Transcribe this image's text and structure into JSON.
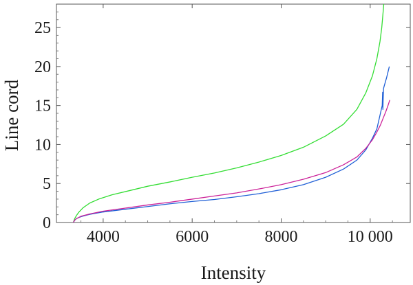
{
  "chart_data": {
    "type": "line",
    "title": "",
    "xlabel": "Intensity",
    "ylabel": "Line cord",
    "xlim": [
      2950,
      10900
    ],
    "ylim": [
      0,
      28
    ],
    "x_ticks": [
      4000,
      6000,
      8000,
      10000
    ],
    "x_tick_labels": [
      "4000",
      "6000",
      "8000",
      "10 000"
    ],
    "y_ticks": [
      0,
      5,
      10,
      15,
      20,
      25
    ],
    "y_tick_labels": [
      "0",
      "5",
      "10",
      "15",
      "20",
      "25"
    ],
    "grid": false,
    "legend": "none",
    "series": [
      {
        "color": "#33dd33",
        "x": [
          3330,
          3360,
          3400,
          3450,
          3550,
          3700,
          3900,
          4200,
          4600,
          5000,
          5500,
          6000,
          6500,
          7000,
          7500,
          8000,
          8500,
          9000,
          9400,
          9700,
          9900,
          10050,
          10150,
          10220,
          10260,
          10280,
          10295,
          10305
        ],
        "y": [
          0.0,
          0.5,
          0.9,
          1.3,
          1.9,
          2.5,
          3.0,
          3.55,
          4.1,
          4.65,
          5.2,
          5.8,
          6.35,
          7.0,
          7.75,
          8.6,
          9.65,
          11.1,
          12.6,
          14.5,
          16.6,
          18.8,
          21.0,
          23.2,
          25.0,
          26.3,
          27.3,
          28.0
        ]
      },
      {
        "color": "#1f5fd6",
        "x": [
          3330,
          3360,
          3400,
          3500,
          3700,
          4000,
          4500,
          5000,
          5500,
          6000,
          6500,
          7000,
          7500,
          8000,
          8500,
          9000,
          9400,
          9700,
          9900,
          10050,
          10150,
          10230,
          10270,
          10280,
          10285,
          10290,
          10300,
          10320,
          10340,
          10370,
          10400,
          10430
        ],
        "y": [
          0.0,
          0.3,
          0.5,
          0.75,
          1.05,
          1.35,
          1.7,
          2.05,
          2.4,
          2.7,
          2.95,
          3.3,
          3.7,
          4.2,
          4.85,
          5.8,
          6.85,
          8.0,
          9.3,
          10.8,
          12.0,
          14.0,
          15.0,
          16.7,
          14.5,
          15.6,
          17.2,
          17.6,
          18.0,
          18.6,
          19.3,
          20.0
        ]
      },
      {
        "color": "#cc2299",
        "x": [
          3330,
          3360,
          3400,
          3500,
          3700,
          4000,
          4500,
          5000,
          5500,
          6000,
          6500,
          7000,
          7500,
          8000,
          8500,
          9000,
          9400,
          9700,
          9900,
          10050,
          10150,
          10230,
          10300,
          10350,
          10400,
          10440
        ],
        "y": [
          0.0,
          0.3,
          0.5,
          0.8,
          1.1,
          1.45,
          1.85,
          2.25,
          2.6,
          3.0,
          3.4,
          3.8,
          4.3,
          4.85,
          5.55,
          6.4,
          7.4,
          8.4,
          9.5,
          10.6,
          11.6,
          12.5,
          13.5,
          14.2,
          15.0,
          15.7
        ]
      }
    ]
  }
}
